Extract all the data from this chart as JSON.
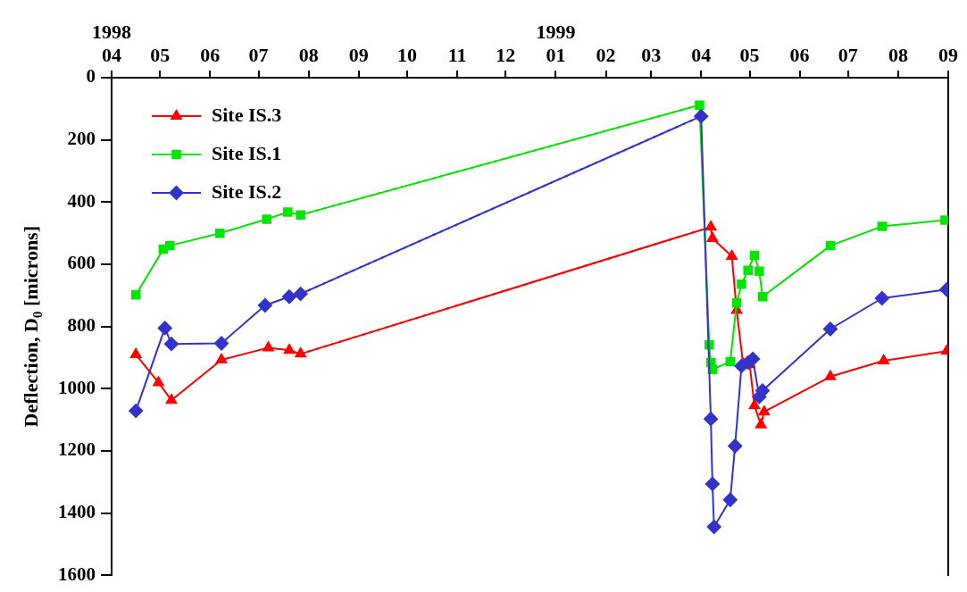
{
  "chart_data": {
    "type": "line",
    "ylabel": "Deflection, D$_{0}$ [microns]",
    "xlim": [
      "1998-04-01",
      "1999-09-01"
    ],
    "xticks": [
      {
        "value": "1998-04-01",
        "label": "1998\n04"
      },
      {
        "value": "1998-05-01",
        "label": "05"
      },
      {
        "value": "1998-06-01",
        "label": "06"
      },
      {
        "value": "1998-07-01",
        "label": "07"
      },
      {
        "value": "1998-08-01",
        "label": "08"
      },
      {
        "value": "1998-09-01",
        "label": "09"
      },
      {
        "value": "1998-10-01",
        "label": "10"
      },
      {
        "value": "1998-11-01",
        "label": "11"
      },
      {
        "value": "1998-12-01",
        "label": "12"
      },
      {
        "value": "1999-01-01",
        "label": "1999\n01"
      },
      {
        "value": "1999-02-01",
        "label": "02"
      },
      {
        "value": "1999-03-01",
        "label": "03"
      },
      {
        "value": "1999-04-01",
        "label": "04"
      },
      {
        "value": "1999-05-01",
        "label": "05"
      },
      {
        "value": "1999-06-01",
        "label": "06"
      },
      {
        "value": "1999-07-01",
        "label": "07"
      },
      {
        "value": "1999-08-01",
        "label": "08"
      },
      {
        "value": "1999-09-01",
        "label": "09"
      }
    ],
    "ylim": [
      1600,
      0
    ],
    "yticks": [
      0,
      200,
      400,
      600,
      800,
      1000,
      1200,
      1400,
      1600
    ],
    "grid": false,
    "legend": "top left",
    "series": [
      {
        "name": "Site IS.3",
        "color": "#ff0000",
        "marker": "triangle",
        "line_style": "solid",
        "x": [
          "1998-04-16",
          "1998-04-30",
          "1998-05-08",
          "1998-06-08",
          "1998-07-07",
          "1998-07-20",
          "1998-07-27",
          "1999-04-07",
          "1999-04-08",
          "1999-04-20",
          "1999-04-23",
          "1999-04-27",
          "1999-05-01",
          "1999-05-04",
          "1999-05-08",
          "1999-05-10",
          "1999-06-20",
          "1999-07-23",
          "1999-08-31"
        ],
        "values": [
          890,
          980,
          1037,
          907,
          868,
          876,
          888,
          480,
          517,
          574,
          748,
          921,
          922,
          1054,
          1116,
          1074,
          961,
          910,
          879
        ]
      },
      {
        "name": "Site IS.1",
        "color": "#00e600",
        "marker": "square",
        "line_style": "solid",
        "x": [
          "1998-04-16",
          "1998-05-03",
          "1998-05-07",
          "1998-06-07",
          "1998-07-06",
          "1998-07-19",
          "1998-07-27",
          "1999-03-31",
          "1999-04-06",
          "1999-04-07",
          "1999-04-08",
          "1999-04-19",
          "1999-04-23",
          "1999-04-26",
          "1999-04-30",
          "1999-05-04",
          "1999-05-07",
          "1999-05-09",
          "1999-06-20",
          "1999-07-22",
          "1999-08-30"
        ],
        "values": [
          698,
          551,
          540,
          500,
          455,
          432,
          441,
          88,
          859,
          916,
          938,
          913,
          724,
          664,
          619,
          571,
          622,
          704,
          540,
          478,
          458
        ]
      },
      {
        "name": "Site IS.2",
        "color": "#3333cc",
        "marker": "diamond",
        "line_style": "solid",
        "x": [
          "1998-04-16",
          "1998-05-04",
          "1998-05-08",
          "1998-06-08",
          "1998-07-05",
          "1998-07-20",
          "1998-07-27",
          "1999-04-01",
          "1999-04-07",
          "1999-04-08",
          "1999-04-09",
          "1999-04-19",
          "1999-04-22",
          "1999-04-26",
          "1999-04-30",
          "1999-05-03",
          "1999-05-07",
          "1999-05-09",
          "1999-06-20",
          "1999-07-22",
          "1999-08-31"
        ],
        "values": [
          1071,
          805,
          856,
          854,
          732,
          704,
          695,
          124,
          1097,
          1306,
          1444,
          1357,
          1184,
          927,
          916,
          904,
          1026,
          1006,
          808,
          709,
          681
        ]
      },
      {
        "color": "#ff0000",
        "marker": "none",
        "line_style": "dotted",
        "x": [
          "1998-07-27",
          "1999-04-07"
        ],
        "values": [
          888,
          480
        ]
      },
      {
        "color": "#00e600",
        "marker": "none",
        "line_style": "dotted",
        "x": [
          "1998-07-27",
          "1999-03-31"
        ],
        "values": [
          441,
          88
        ]
      },
      {
        "color": "#3333cc",
        "marker": "none",
        "line_style": "dotted",
        "x": [
          "1998-07-27",
          "1999-04-01"
        ],
        "values": [
          695,
          124
        ]
      }
    ]
  }
}
